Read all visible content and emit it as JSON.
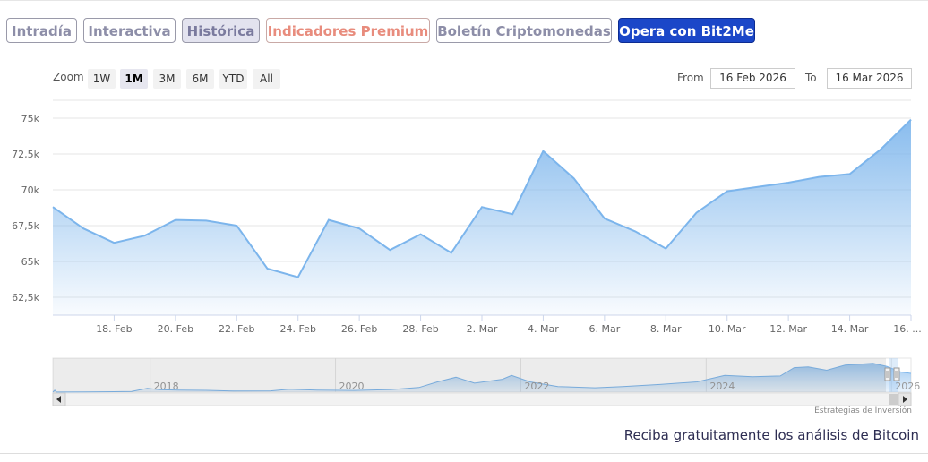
{
  "tabs": [
    {
      "label": "Intradía",
      "style": "normal"
    },
    {
      "label": "Interactiva",
      "style": "normal"
    },
    {
      "label": "Histórica",
      "style": "active"
    },
    {
      "label": "Indicadores Premium",
      "style": "premium"
    },
    {
      "label": "Boletín Criptomonedas",
      "style": "normal"
    },
    {
      "label": "Opera con Bit2Me",
      "style": "cta"
    }
  ],
  "zoom": {
    "label": "Zoom",
    "options": [
      "1W",
      "1M",
      "3M",
      "6M",
      "YTD",
      "All"
    ],
    "selected": "1M"
  },
  "range": {
    "from_label": "From",
    "from_value": "16 Feb 2026",
    "to_label": "To",
    "to_value": "16 Mar 2026"
  },
  "chart_data": {
    "type": "area",
    "title": "",
    "xlabel": "",
    "ylabel": "",
    "ylim": [
      61250,
      76250
    ],
    "yticks": [
      62500,
      65000,
      67500,
      70000,
      72500,
      75000
    ],
    "ytick_labels": [
      "62,5k",
      "65k",
      "67,5k",
      "70k",
      "72,5k",
      "75k"
    ],
    "x_tick_labels": [
      "18. Feb",
      "20. Feb",
      "22. Feb",
      "24. Feb",
      "26. Feb",
      "28. Feb",
      "2. Mar",
      "4. Mar",
      "6. Mar",
      "8. Mar",
      "10. Mar",
      "12. Mar",
      "14. Mar",
      "16. ..."
    ],
    "x_tick_dates": [
      "2026-02-18",
      "2026-02-20",
      "2026-02-22",
      "2026-02-24",
      "2026-02-26",
      "2026-02-28",
      "2026-03-02",
      "2026-03-04",
      "2026-03-06",
      "2026-03-08",
      "2026-03-10",
      "2026-03-12",
      "2026-03-14",
      "2026-03-16"
    ],
    "grid": true,
    "legend": "none",
    "x": [
      "2026-02-16",
      "2026-02-17",
      "2026-02-18",
      "2026-02-19",
      "2026-02-20",
      "2026-02-21",
      "2026-02-22",
      "2026-02-23",
      "2026-02-24",
      "2026-02-25",
      "2026-02-26",
      "2026-02-27",
      "2026-02-28",
      "2026-03-01",
      "2026-03-02",
      "2026-03-03",
      "2026-03-04",
      "2026-03-05",
      "2026-03-06",
      "2026-03-07",
      "2026-03-08",
      "2026-03-09",
      "2026-03-10",
      "2026-03-11",
      "2026-03-12",
      "2026-03-13",
      "2026-03-14",
      "2026-03-15",
      "2026-03-16"
    ],
    "values": [
      68800,
      67300,
      66300,
      66800,
      67900,
      67850,
      67500,
      64500,
      63900,
      67900,
      67300,
      65800,
      66900,
      65600,
      68800,
      68300,
      72700,
      70800,
      68000,
      67100,
      65900,
      68400,
      69900,
      70200,
      70500,
      70900,
      71100,
      72800,
      74900
    ],
    "line_color": "#7cb5ec",
    "navigator": {
      "x_labels": [
        "2018",
        "2020",
        "2022",
        "2024",
        "2026"
      ],
      "x_years": [
        2018,
        2020,
        2022,
        2024,
        2026
      ],
      "x_start_year": 2016.95,
      "x_end_year": 2026.21,
      "y_max": 125000,
      "points": [
        [
          2016.95,
          0
        ],
        [
          2016.97,
          7500
        ],
        [
          2016.99,
          200
        ],
        [
          2017.3,
          800
        ],
        [
          2017.8,
          2500
        ],
        [
          2017.97,
          15000
        ],
        [
          2018.1,
          9500
        ],
        [
          2018.3,
          8000
        ],
        [
          2018.6,
          7000
        ],
        [
          2018.9,
          4000
        ],
        [
          2019.3,
          5000
        ],
        [
          2019.5,
          11000
        ],
        [
          2019.8,
          8000
        ],
        [
          2020.2,
          6500
        ],
        [
          2020.6,
          10000
        ],
        [
          2020.9,
          18000
        ],
        [
          2021.1,
          40000
        ],
        [
          2021.3,
          58000
        ],
        [
          2021.5,
          35000
        ],
        [
          2021.8,
          50000
        ],
        [
          2021.9,
          65000
        ],
        [
          2022.1,
          40000
        ],
        [
          2022.4,
          22000
        ],
        [
          2022.8,
          17000
        ],
        [
          2023.1,
          22000
        ],
        [
          2023.5,
          30000
        ],
        [
          2023.9,
          40000
        ],
        [
          2024.2,
          65000
        ],
        [
          2024.5,
          60000
        ],
        [
          2024.8,
          63000
        ],
        [
          2024.95,
          95000
        ],
        [
          2025.1,
          98000
        ],
        [
          2025.3,
          85000
        ],
        [
          2025.5,
          105000
        ],
        [
          2025.8,
          112000
        ],
        [
          2025.95,
          100000
        ],
        [
          2026.1,
          78000
        ],
        [
          2026.21,
          73000
        ]
      ]
    }
  },
  "footer": {
    "credit": "Estrategias de Inversión",
    "promo": "Reciba gratuitamente los análisis de Bitcoin"
  }
}
